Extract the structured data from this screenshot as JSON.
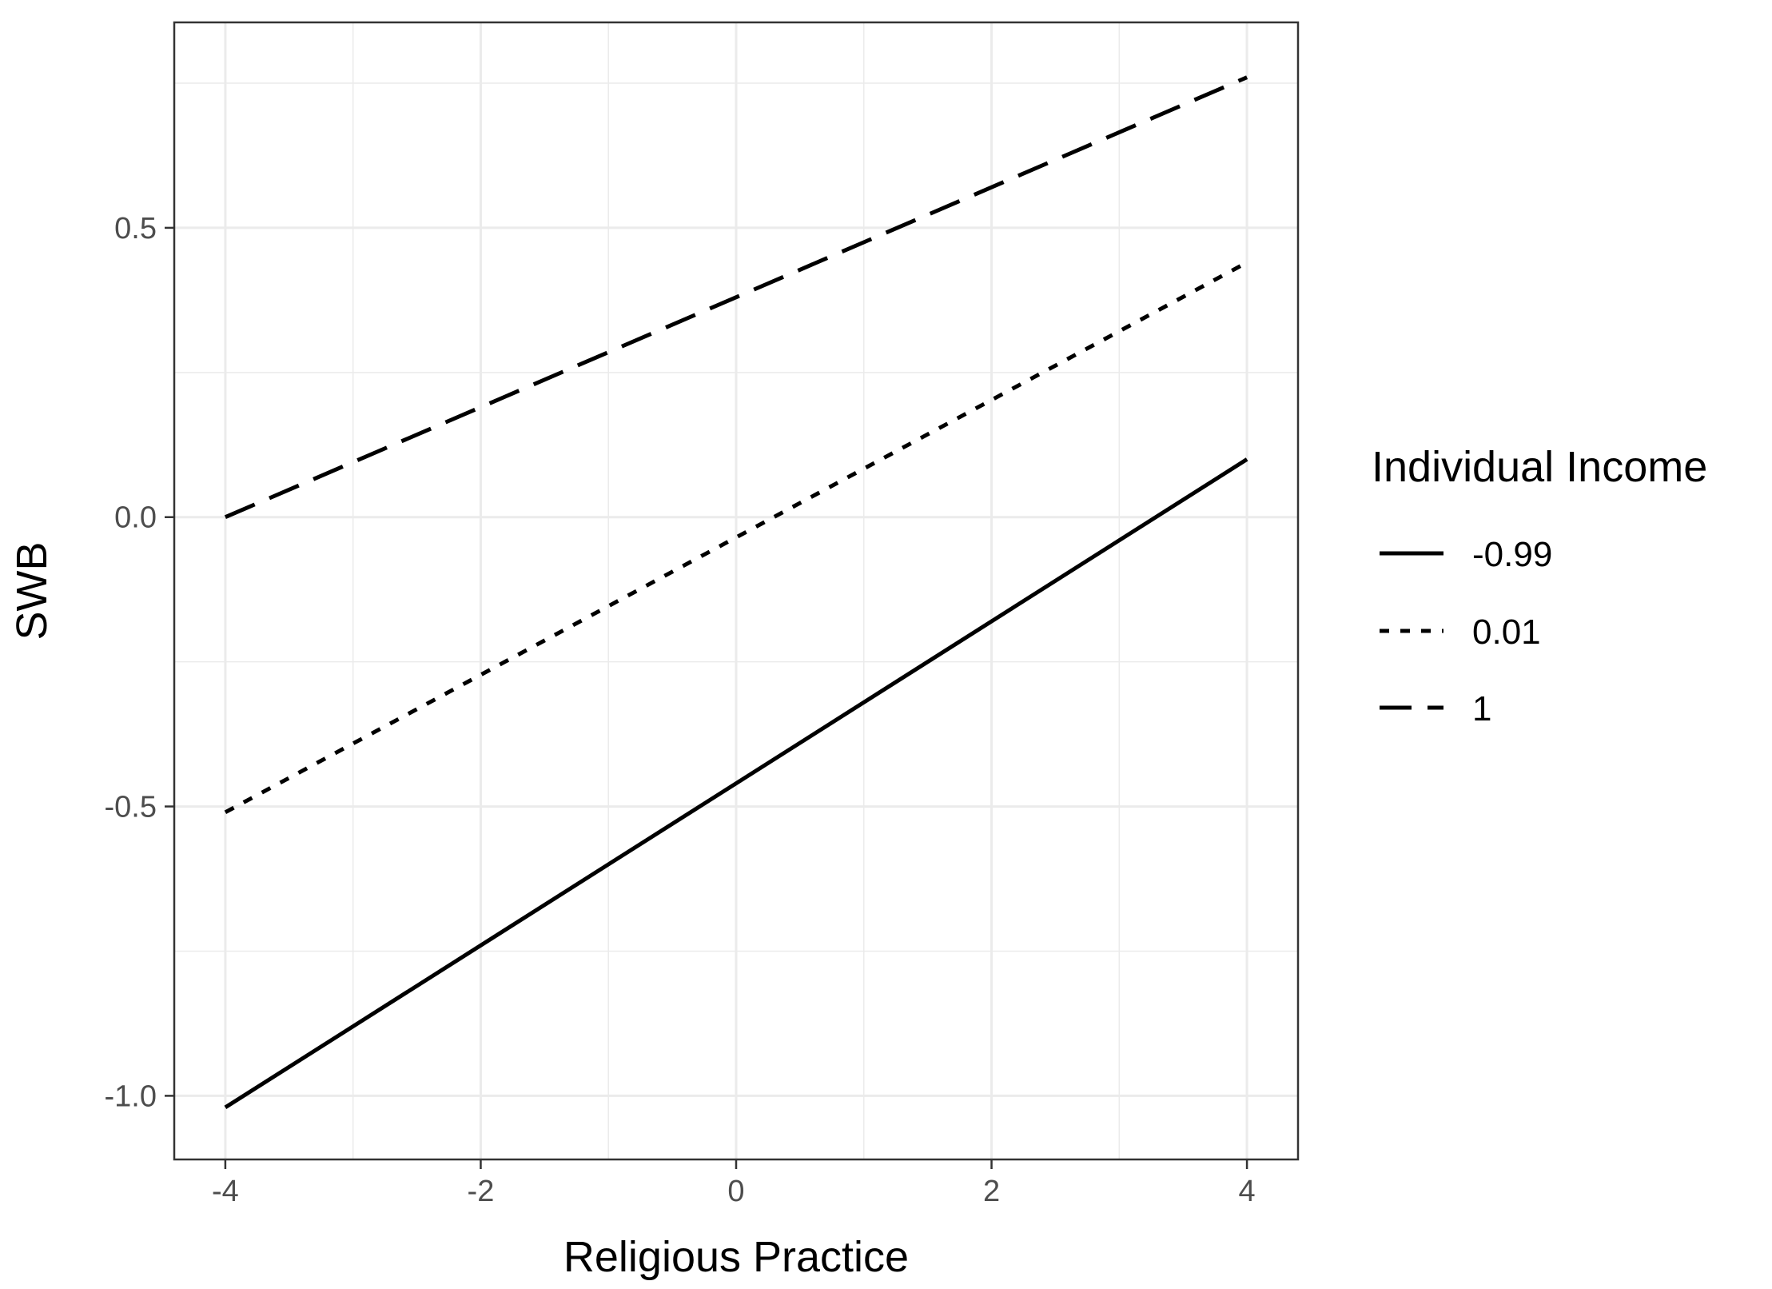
{
  "chart_data": {
    "type": "line",
    "title": "",
    "xlabel": "Religious Practice",
    "ylabel": "SWB",
    "xlim": [
      -4.4,
      4.4
    ],
    "ylim": [
      -1.11,
      0.855
    ],
    "x_ticks": [
      -4,
      -2,
      0,
      2,
      4
    ],
    "x_tick_labels": [
      "-4",
      "-2",
      "0",
      "2",
      "4"
    ],
    "y_ticks": [
      -1.0,
      -0.5,
      0.0,
      0.5
    ],
    "y_tick_labels": [
      "-1.0",
      "-0.5",
      "0.0",
      "0.5"
    ],
    "grid": true,
    "legend": {
      "title": "Individual Income",
      "position": "right"
    },
    "series": [
      {
        "name": "-0.99",
        "linestyle": "solid",
        "x": [
          -4,
          4
        ],
        "y": [
          -1.02,
          0.1
        ]
      },
      {
        "name": "0.01",
        "linestyle": "dotted",
        "x": [
          -4,
          4
        ],
        "y": [
          -0.51,
          0.44
        ]
      },
      {
        "name": "1",
        "linestyle": "dashed",
        "x": [
          -4,
          4
        ],
        "y": [
          0.0,
          0.76
        ]
      }
    ],
    "colors": {
      "lines": "#000000",
      "grid": "#ebebeb",
      "panel_border": "#333333",
      "tick_text": "#4d4d4d"
    }
  }
}
